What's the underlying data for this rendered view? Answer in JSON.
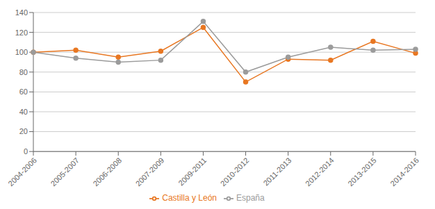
{
  "chart_data": {
    "type": "line",
    "categories": [
      "2004-2006",
      "2005-2007",
      "2006-2008",
      "2007-2009",
      "2009-2011",
      "2010-2012",
      "2011-2013",
      "2012-2014",
      "2013-2015",
      "2014-2016"
    ],
    "series": [
      {
        "name": "Castilla y León",
        "color": "#E87722",
        "values": [
          100,
          102,
          95,
          101,
          125,
          70,
          93,
          92,
          111,
          99
        ]
      },
      {
        "name": "España",
        "color": "#9B9B9B",
        "values": [
          100,
          94,
          90,
          92,
          131,
          80,
          95,
          105,
          102,
          103
        ]
      }
    ],
    "ylim": [
      0,
      140
    ],
    "yticks": [
      0,
      20,
      40,
      60,
      80,
      100,
      120,
      140
    ],
    "grid": true,
    "legend": "bottom",
    "marker": "circle"
  }
}
